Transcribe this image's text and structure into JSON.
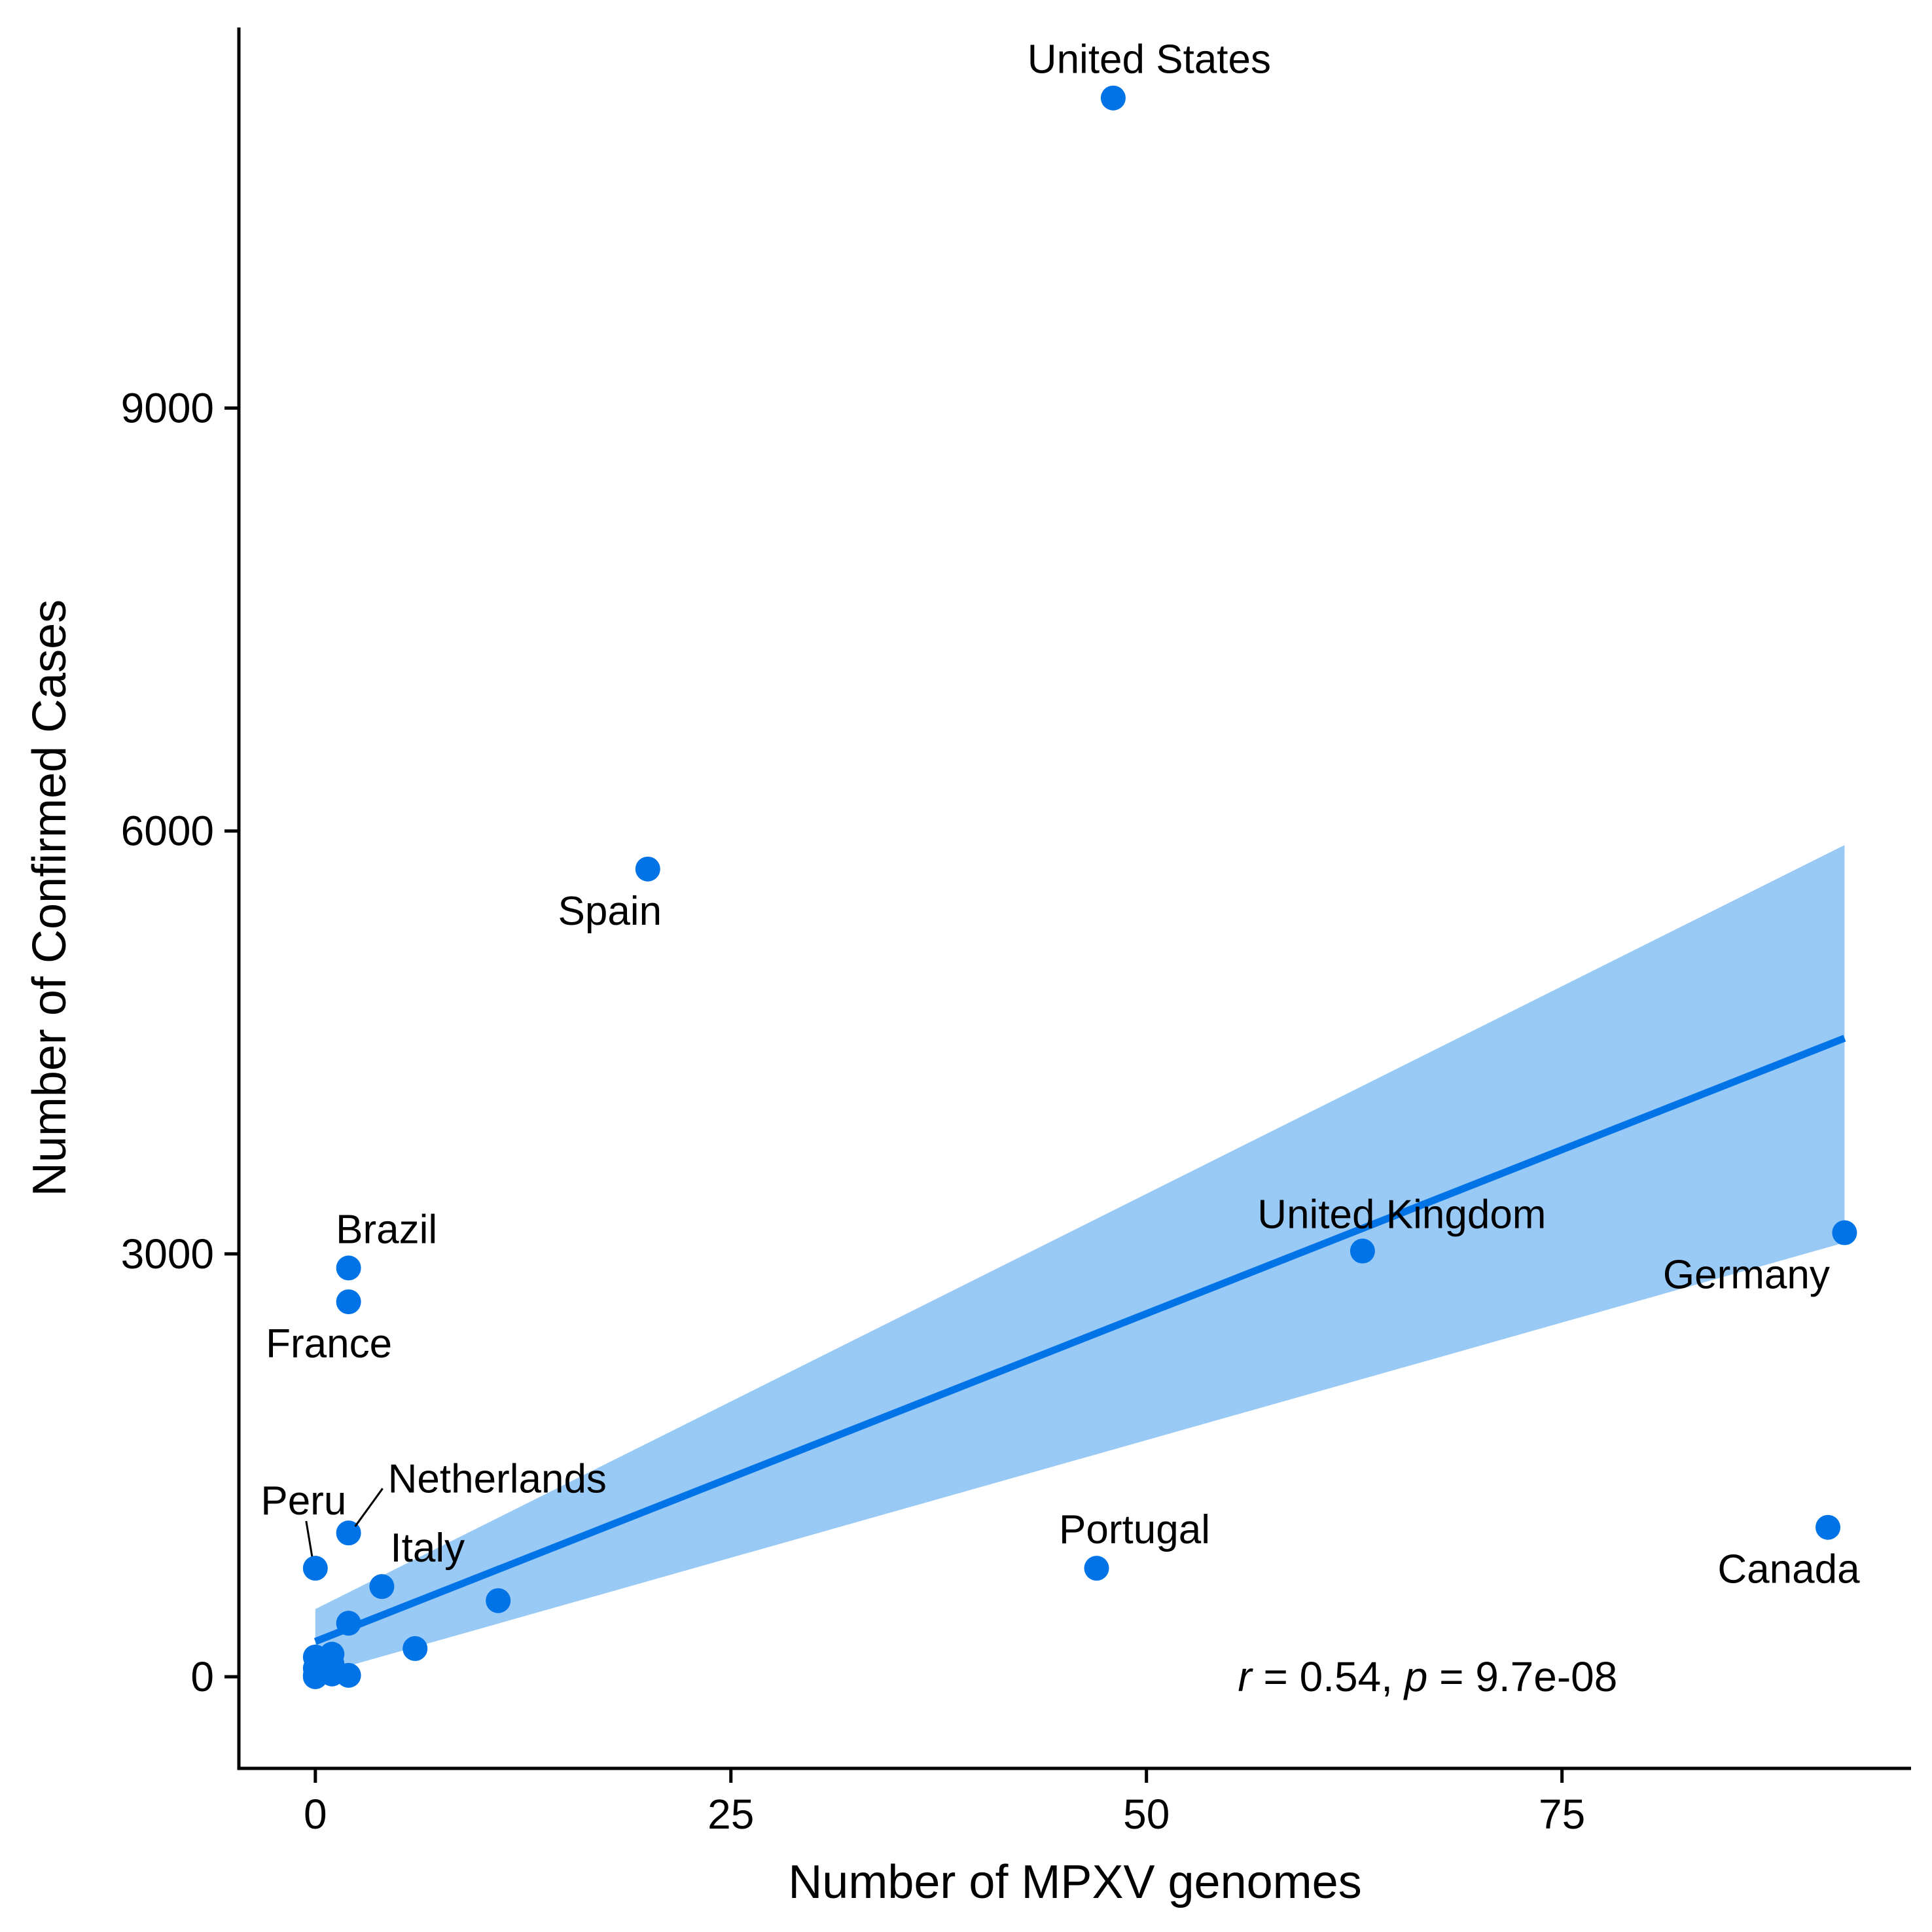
{
  "chart_data": {
    "type": "scatter",
    "title": "",
    "xlabel": "Number of MPXV genomes",
    "ylabel": "Number of Confirmed Cases",
    "xlim": [
      -4.6,
      96
    ],
    "ylim": [
      -650,
      11700
    ],
    "xticks": [
      0,
      25,
      50,
      75
    ],
    "yticks": [
      0,
      3000,
      6000,
      9000
    ],
    "grid": false,
    "legend": "none",
    "colors": {
      "point": "#0073E6",
      "line": "#0073E6",
      "band": "#99C9F5"
    },
    "points": [
      {
        "x": 48,
        "y": 11200,
        "label": "United States"
      },
      {
        "x": 20,
        "y": 5730,
        "label": "Spain"
      },
      {
        "x": 92,
        "y": 3150,
        "label": "Germany"
      },
      {
        "x": 63,
        "y": 3020,
        "label": "United Kingdom"
      },
      {
        "x": 2,
        "y": 2900,
        "label": "Brazil"
      },
      {
        "x": 2,
        "y": 2660,
        "label": "France"
      },
      {
        "x": 91,
        "y": 1060,
        "label": "Canada"
      },
      {
        "x": 2,
        "y": 1020,
        "label": "Netherlands"
      },
      {
        "x": 0,
        "y": 770,
        "label": "Peru"
      },
      {
        "x": 47,
        "y": 770,
        "label": "Portugal"
      },
      {
        "x": 4,
        "y": 640,
        "label": "Italy"
      },
      {
        "x": 11,
        "y": 540,
        "label": ""
      },
      {
        "x": 2,
        "y": 380,
        "label": ""
      },
      {
        "x": 6,
        "y": 200,
        "label": ""
      },
      {
        "x": 1,
        "y": 160,
        "label": ""
      },
      {
        "x": 0,
        "y": 140,
        "label": ""
      },
      {
        "x": 1,
        "y": 90,
        "label": ""
      },
      {
        "x": 0,
        "y": 60,
        "label": ""
      },
      {
        "x": 2,
        "y": 10,
        "label": ""
      },
      {
        "x": 1,
        "y": 20,
        "label": ""
      },
      {
        "x": 0,
        "y": 10,
        "label": ""
      },
      {
        "x": 0,
        "y": 0,
        "label": ""
      }
    ],
    "regression": {
      "x": [
        0,
        92
      ],
      "y": [
        250,
        4530
      ],
      "band_upper": [
        480,
        5900
      ],
      "band_lower": [
        10,
        3080
      ]
    },
    "annotation": {
      "r_symbol": "r",
      "r_text": " = 0.54, ",
      "p_symbol": "p",
      "p_text": " = 9.7e-08",
      "x": 55.5,
      "y": 0
    }
  }
}
